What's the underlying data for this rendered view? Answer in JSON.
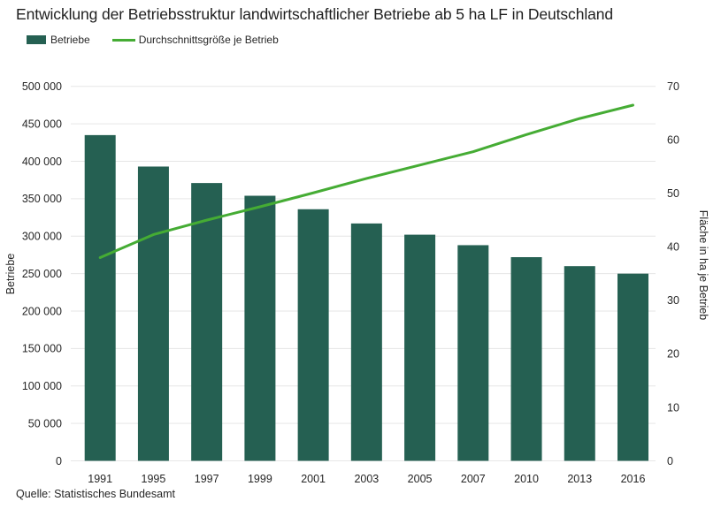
{
  "chart_data": {
    "type": "bar",
    "title": "Entwicklung der Betriebsstruktur landwirtschaftlicher Betriebe ab 5 ha LF in Deutschland",
    "categories": [
      "1991",
      "1995",
      "1997",
      "1999",
      "2001",
      "2003",
      "2005",
      "2007",
      "2010",
      "2013",
      "2016"
    ],
    "series": [
      {
        "name": "Betriebe",
        "type": "bar",
        "axis": "left",
        "color": "#256052",
        "values": [
          435000,
          393000,
          371000,
          354000,
          336000,
          317000,
          302000,
          288000,
          272000,
          260000,
          250000
        ]
      },
      {
        "name": "Durchschnittsgröße je Betrieb",
        "type": "line",
        "axis": "right",
        "color": "#45ac34",
        "values": [
          38,
          42.3,
          45,
          47.5,
          50.1,
          52.8,
          55.3,
          57.8,
          61,
          64,
          66.5
        ]
      }
    ],
    "ylabel_left": "Betriebe",
    "ylabel_right": "Fläche in ha je Betrieb",
    "ylim_left": [
      0,
      500000
    ],
    "ylim_right": [
      0,
      70
    ],
    "ytick_step_left": 50000,
    "ytick_step_right": 10,
    "ytick_labels_left": [
      "0",
      "50 000",
      "100 000",
      "150 000",
      "200 000",
      "250 000",
      "300 000",
      "350 000",
      "400 000",
      "450 000",
      "500 000"
    ],
    "ytick_labels_right": [
      "0",
      "10",
      "20",
      "30",
      "40",
      "50",
      "60",
      "70"
    ],
    "grid": true,
    "grid_color": "#e6e6e6",
    "legend_position": "top-left",
    "source": "Quelle: Statistisches Bundesamt"
  }
}
